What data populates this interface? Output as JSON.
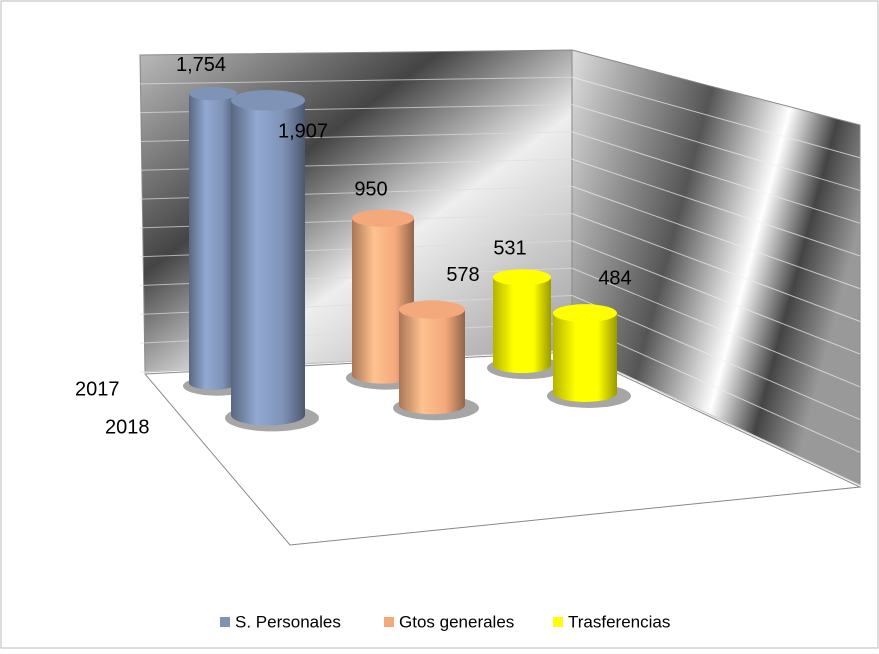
{
  "chart_data": {
    "type": "bar3d",
    "categories": [
      "2017",
      "2018"
    ],
    "series": [
      {
        "name": "S. Personales",
        "color": "#7f93b7",
        "values": [
          1754,
          1907
        ],
        "value_labels": [
          "1,754",
          "1,907"
        ]
      },
      {
        "name": "Gtos generales",
        "color": "#f4a97c",
        "values": [
          950,
          578
        ],
        "value_labels": [
          "950",
          "578"
        ]
      },
      {
        "name": "Trasferencias",
        "color": "#ffff00",
        "values": [
          531,
          484
        ],
        "value_labels": [
          "531",
          "484"
        ]
      }
    ],
    "ylim": [
      0,
      2000
    ]
  }
}
